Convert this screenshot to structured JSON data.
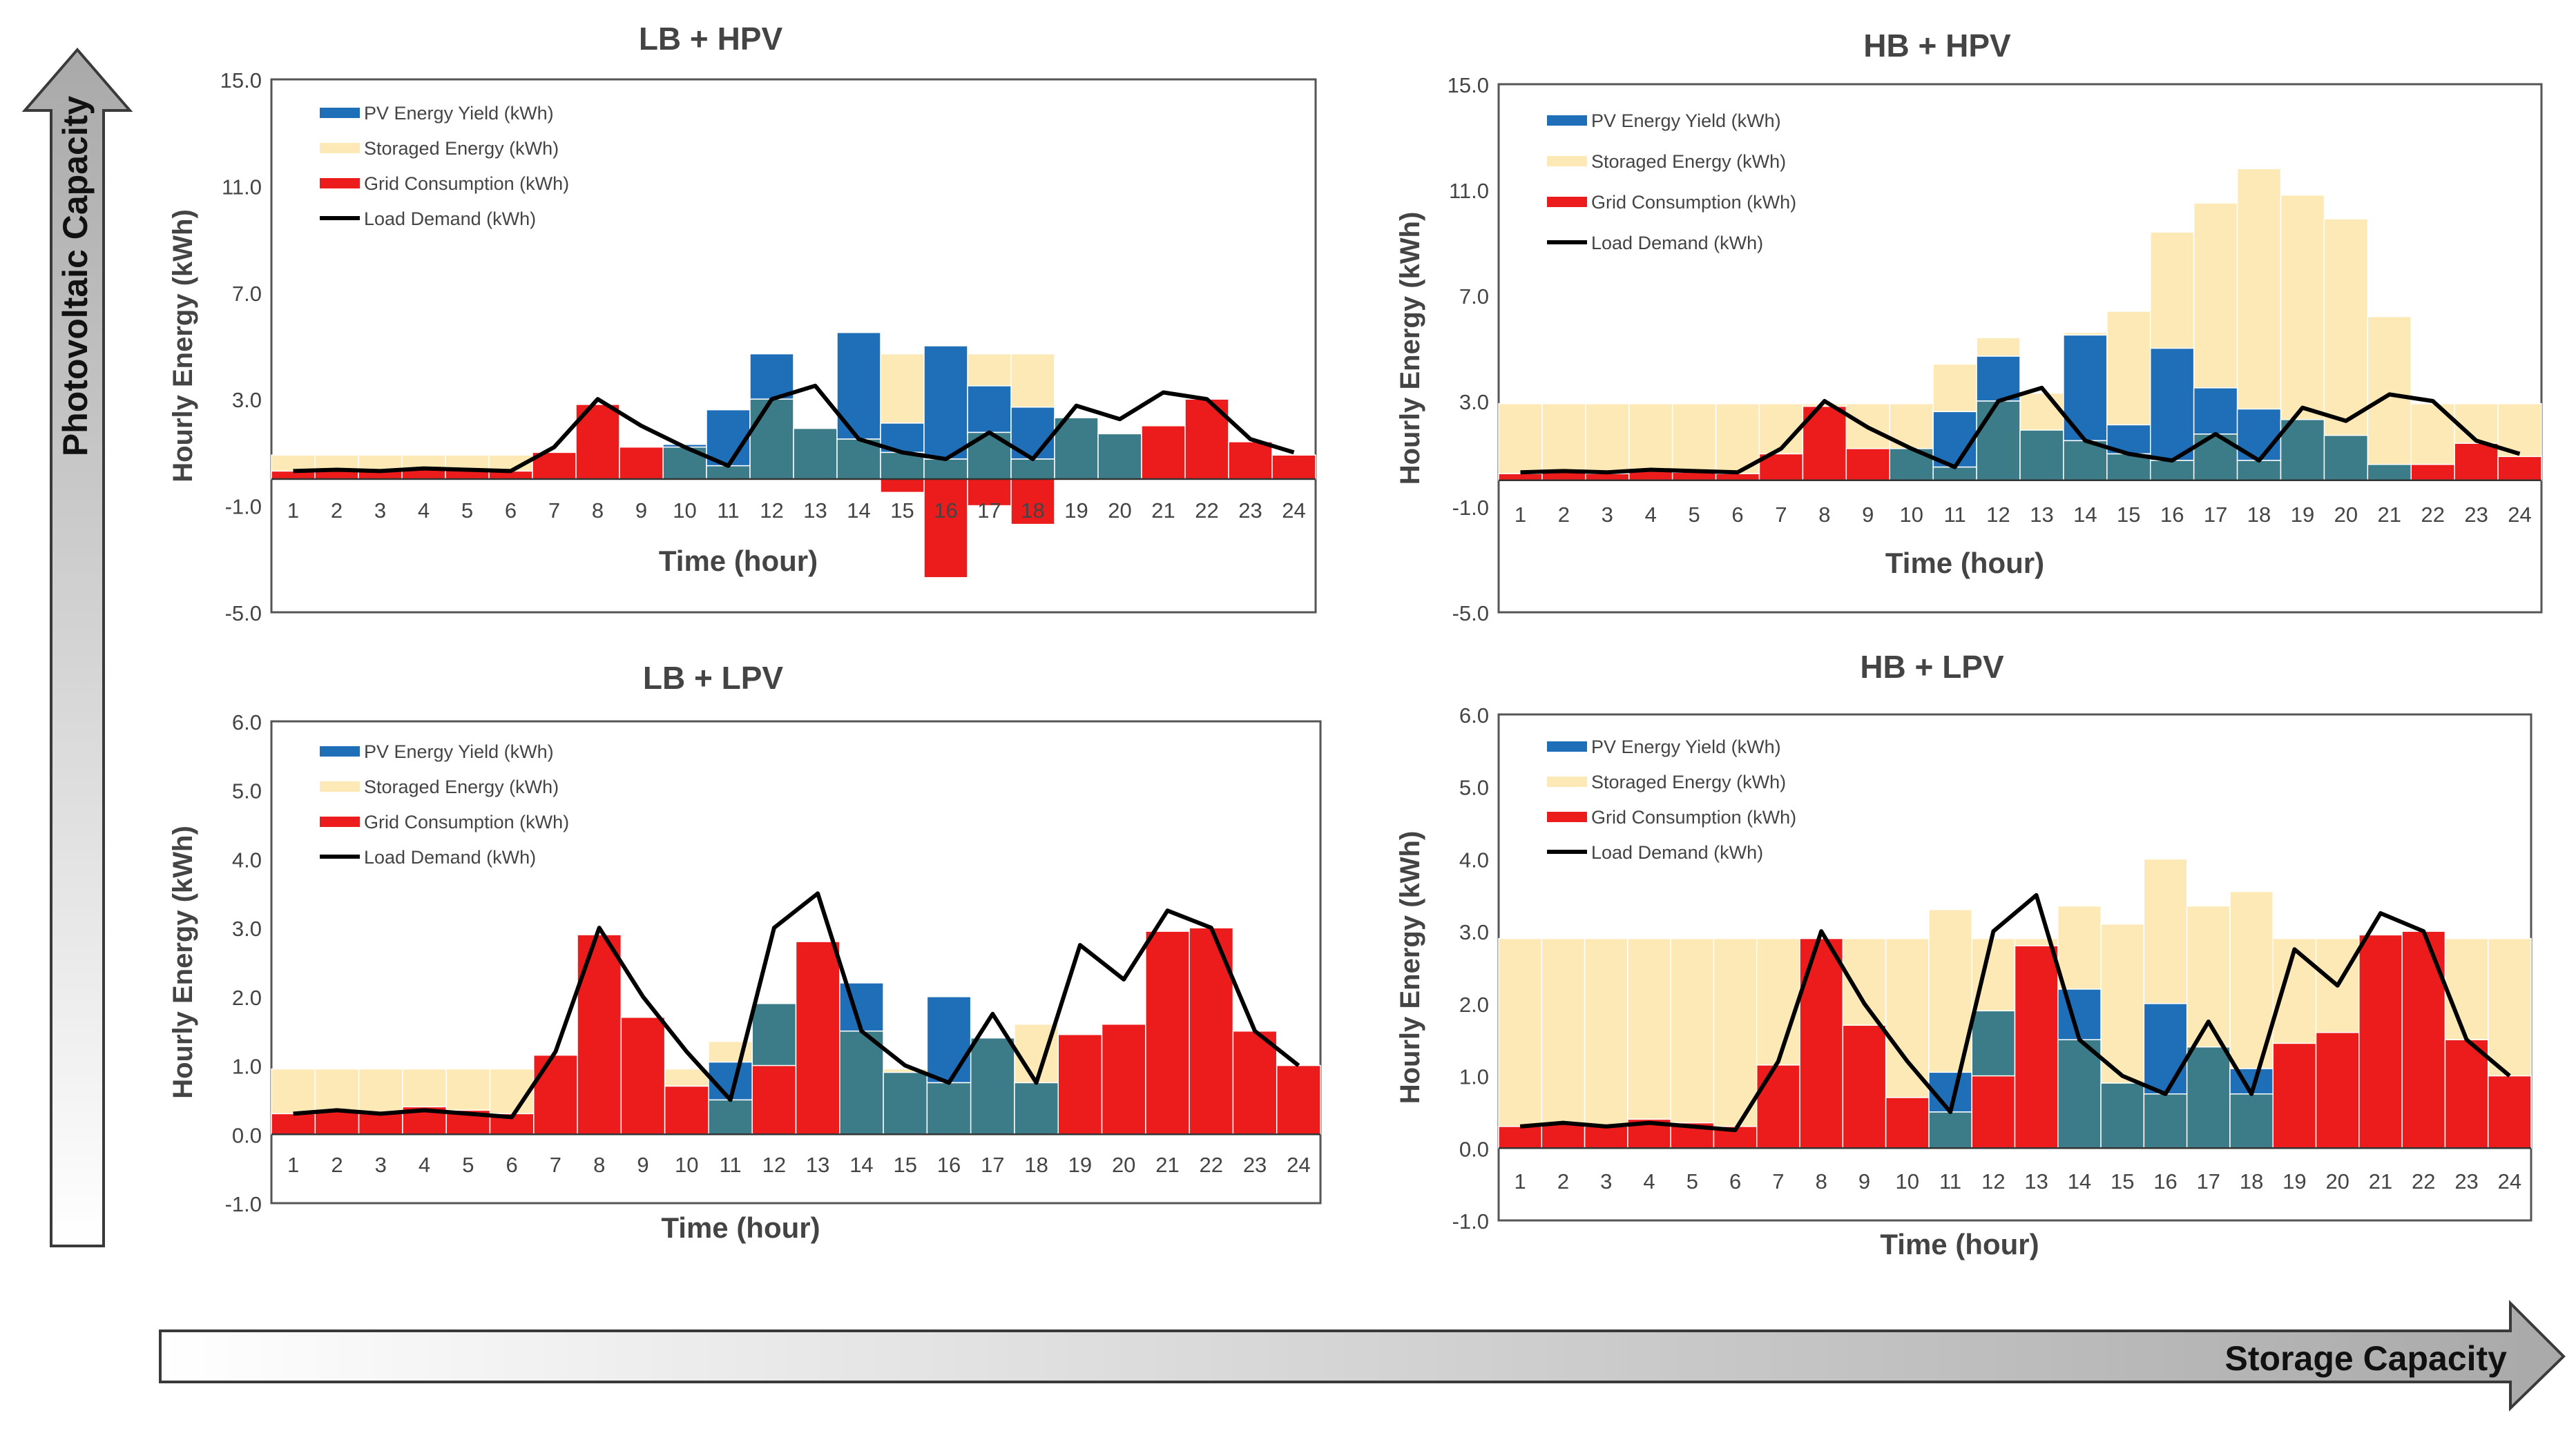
{
  "axes": {
    "vertical_label": "Photovoltaic Capacity",
    "horizontal_label": "Storage Capacity"
  },
  "colors": {
    "pv": "#1f6fb8",
    "pv_to_load": "#3c7c88",
    "storage": "#fde9b6",
    "grid": "#ec1c1c",
    "load": "#000000"
  },
  "chart_data": [
    {
      "type": "bar",
      "title": "LB + HPV",
      "xlabel": "Time (hour)",
      "ylabel": "Hourly Energy (kWh)",
      "ylim": [
        -5,
        15
      ],
      "yticks": [
        "15.0",
        "11.0",
        "7.0",
        "3.0",
        "-1.0",
        "-5.0"
      ],
      "categories": [
        "1",
        "2",
        "3",
        "4",
        "5",
        "6",
        "7",
        "8",
        "9",
        "10",
        "11",
        "12",
        "13",
        "14",
        "15",
        "16",
        "17",
        "18",
        "19",
        "20",
        "21",
        "22",
        "23",
        "24"
      ],
      "legend": [
        "PV Energy Yield (kWh)",
        "Storaged Energy (kWh)",
        "Grid Consumption (kWh)",
        "Load Demand (kWh)"
      ],
      "series": [
        {
          "name": "Storaged Energy (kWh)",
          "values": [
            0.9,
            0.9,
            0.9,
            0.9,
            0.9,
            0.9,
            0,
            0,
            0,
            0,
            0,
            0,
            0,
            0,
            4.7,
            4.7,
            4.7,
            4.7,
            0,
            0,
            0,
            0,
            0,
            0
          ]
        },
        {
          "name": "PV Energy Yield (kWh)",
          "values": [
            0,
            0,
            0,
            0,
            0,
            0,
            0,
            0,
            0,
            1.3,
            2.6,
            4.7,
            1.9,
            5.5,
            2.1,
            5.0,
            3.5,
            2.7,
            2.3,
            1.7,
            0,
            0,
            0,
            0
          ]
        },
        {
          "name": "Grid Consumption (kWh)",
          "values": [
            0.3,
            0.35,
            0.3,
            0.4,
            0.35,
            0.3,
            1.0,
            2.8,
            1.2,
            0,
            0,
            0,
            0,
            0,
            -0.5,
            -3.7,
            -1.0,
            -1.7,
            0,
            0,
            2.0,
            3.0,
            1.4,
            0.9
          ]
        },
        {
          "name": "Load Demand (kWh)",
          "values": [
            0.3,
            0.35,
            0.3,
            0.4,
            0.35,
            0.3,
            1.2,
            3.0,
            2.0,
            1.2,
            0.5,
            3.0,
            3.5,
            1.5,
            1.0,
            0.75,
            1.75,
            0.75,
            2.75,
            2.25,
            3.25,
            3.0,
            1.5,
            1.0
          ]
        }
      ]
    },
    {
      "type": "bar",
      "title": "HB + HPV",
      "xlabel": "Time (hour)",
      "ylabel": "Hourly Energy (kWh)",
      "ylim": [
        -5,
        15
      ],
      "yticks": [
        "15.0",
        "11.0",
        "7.0",
        "3.0",
        "-1.0",
        "-5.0"
      ],
      "categories": [
        "1",
        "2",
        "3",
        "4",
        "5",
        "6",
        "7",
        "8",
        "9",
        "10",
        "11",
        "12",
        "13",
        "14",
        "15",
        "16",
        "17",
        "18",
        "19",
        "20",
        "21",
        "22",
        "23",
        "24"
      ],
      "legend": [
        "PV Energy Yield (kWh)",
        "Storaged Energy (kWh)",
        "Grid Consumption (kWh)",
        "Load Demand (kWh)"
      ],
      "series": [
        {
          "name": "Storaged Energy (kWh)",
          "values": [
            2.9,
            2.9,
            2.9,
            2.9,
            2.9,
            2.9,
            2.9,
            2.9,
            2.9,
            2.9,
            4.4,
            5.4,
            3.3,
            5.6,
            6.4,
            9.4,
            10.5,
            11.8,
            10.8,
            9.9,
            6.2,
            2.9,
            2.9,
            2.9
          ]
        },
        {
          "name": "PV Energy Yield (kWh)",
          "values": [
            0,
            0,
            0,
            0,
            0,
            0,
            0,
            0,
            0,
            1.2,
            2.6,
            4.7,
            1.9,
            5.5,
            2.1,
            5.0,
            3.5,
            2.7,
            2.3,
            1.7,
            0.6,
            0,
            0,
            0
          ]
        },
        {
          "name": "Grid Consumption (kWh)",
          "values": [
            0.25,
            0.3,
            0.25,
            0.35,
            0.3,
            0.25,
            1.0,
            2.8,
            1.2,
            0,
            0,
            0,
            0,
            0,
            0,
            0,
            0,
            0,
            0,
            0,
            0,
            0.6,
            1.4,
            0.9
          ]
        },
        {
          "name": "Load Demand (kWh)",
          "values": [
            0.3,
            0.35,
            0.3,
            0.4,
            0.35,
            0.3,
            1.2,
            3.0,
            2.0,
            1.2,
            0.5,
            3.0,
            3.5,
            1.5,
            1.0,
            0.75,
            1.75,
            0.75,
            2.75,
            2.25,
            3.25,
            3.0,
            1.5,
            1.0
          ]
        }
      ]
    },
    {
      "type": "bar",
      "title": "LB + LPV",
      "xlabel": "Time (hour)",
      "ylabel": "Hourly Energy (kWh)",
      "ylim": [
        -1,
        6
      ],
      "yticks": [
        "6.0",
        "5.0",
        "4.0",
        "3.0",
        "2.0",
        "1.0",
        "0.0",
        "-1.0"
      ],
      "categories": [
        "1",
        "2",
        "3",
        "4",
        "5",
        "6",
        "7",
        "8",
        "9",
        "10",
        "11",
        "12",
        "13",
        "14",
        "15",
        "16",
        "17",
        "18",
        "19",
        "20",
        "21",
        "22",
        "23",
        "24"
      ],
      "legend": [
        "PV Energy Yield (kWh)",
        "Storaged Energy (kWh)",
        "Grid Consumption (kWh)",
        "Load Demand (kWh)"
      ],
      "series": [
        {
          "name": "Storaged Energy (kWh)",
          "values": [
            0.95,
            0.95,
            0.95,
            0.95,
            0.95,
            0.95,
            0,
            0,
            0,
            0.95,
            1.35,
            0,
            0,
            0,
            0.95,
            0,
            1.35,
            1.6,
            0,
            0,
            0,
            0,
            0,
            0
          ]
        },
        {
          "name": "PV Energy Yield (kWh)",
          "values": [
            0,
            0,
            0,
            0,
            0,
            0,
            0,
            0,
            0,
            0,
            1.05,
            1.9,
            0,
            2.2,
            0.9,
            2.0,
            1.4,
            0.75,
            0,
            0,
            0,
            0,
            0,
            0
          ]
        },
        {
          "name": "Grid Consumption (kWh)",
          "values": [
            0.3,
            0.35,
            0.3,
            0.4,
            0.35,
            0.3,
            1.15,
            2.9,
            1.7,
            0.7,
            0,
            1.0,
            2.8,
            0,
            0,
            0,
            0,
            0,
            1.45,
            1.6,
            2.95,
            3.0,
            1.5,
            1.0
          ]
        },
        {
          "name": "Load Demand (kWh)",
          "values": [
            0.3,
            0.35,
            0.3,
            0.35,
            0.3,
            0.25,
            1.2,
            3.0,
            2.0,
            1.2,
            0.5,
            3.0,
            3.5,
            1.5,
            1.0,
            0.75,
            1.75,
            0.75,
            2.75,
            2.25,
            3.25,
            3.0,
            1.5,
            1.0
          ]
        }
      ]
    },
    {
      "type": "bar",
      "title": "HB + LPV",
      "xlabel": "Time (hour)",
      "ylabel": "Hourly Energy (kWh)",
      "ylim": [
        -1,
        6
      ],
      "yticks": [
        "6.0",
        "5.0",
        "4.0",
        "3.0",
        "2.0",
        "1.0",
        "0.0",
        "-1.0"
      ],
      "categories": [
        "1",
        "2",
        "3",
        "4",
        "5",
        "6",
        "7",
        "8",
        "9",
        "10",
        "11",
        "12",
        "13",
        "14",
        "15",
        "16",
        "17",
        "18",
        "19",
        "20",
        "21",
        "22",
        "23",
        "24"
      ],
      "legend": [
        "PV Energy Yield (kWh)",
        "Storaged Energy (kWh)",
        "Grid Consumption (kWh)",
        "Load Demand (kWh)"
      ],
      "series": [
        {
          "name": "Storaged Energy (kWh)",
          "values": [
            2.9,
            2.9,
            2.9,
            2.9,
            2.9,
            2.9,
            2.9,
            2.9,
            2.9,
            2.9,
            3.3,
            2.9,
            2.9,
            3.35,
            3.1,
            4.0,
            3.35,
            3.55,
            2.9,
            2.9,
            2.9,
            2.9,
            2.9,
            2.9
          ]
        },
        {
          "name": "PV Energy Yield (kWh)",
          "values": [
            0,
            0,
            0,
            0,
            0,
            0,
            0,
            0,
            0,
            0,
            1.05,
            1.9,
            0,
            2.2,
            0.9,
            2.0,
            1.4,
            1.1,
            0,
            0,
            0,
            0,
            0,
            0
          ]
        },
        {
          "name": "Grid Consumption (kWh)",
          "values": [
            0.3,
            0.35,
            0.3,
            0.4,
            0.35,
            0.3,
            1.15,
            2.9,
            1.7,
            0.7,
            0,
            1.0,
            2.8,
            0,
            0,
            0,
            0,
            0,
            1.45,
            1.6,
            2.95,
            3.0,
            1.5,
            1.0
          ]
        },
        {
          "name": "Load Demand (kWh)",
          "values": [
            0.3,
            0.35,
            0.3,
            0.35,
            0.3,
            0.25,
            1.2,
            3.0,
            2.0,
            1.2,
            0.5,
            3.0,
            3.5,
            1.5,
            1.0,
            0.75,
            1.75,
            0.75,
            2.75,
            2.25,
            3.25,
            3.0,
            1.5,
            1.0
          ]
        }
      ]
    }
  ]
}
